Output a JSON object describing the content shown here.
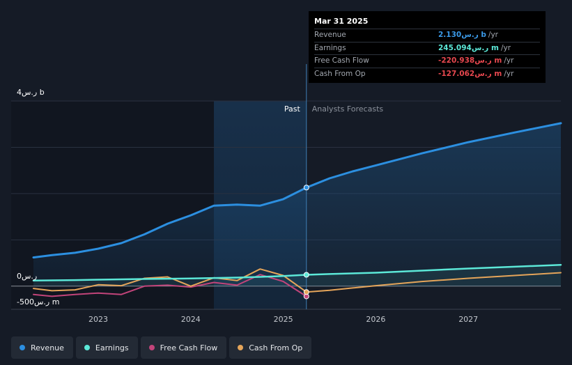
{
  "tooltip": {
    "date": "Mar 31 2025",
    "rows": [
      {
        "label": "Revenue",
        "value": "2.130ر.س b",
        "suffix": "/yr",
        "color": "#3b9ae8"
      },
      {
        "label": "Earnings",
        "value": "245.094ر.س m",
        "suffix": "/yr",
        "color": "#5ce8d8"
      },
      {
        "label": "Free Cash Flow",
        "value": "-220.938ر.س m",
        "suffix": "/yr",
        "color": "#e8484f"
      },
      {
        "label": "Cash From Op",
        "value": "-127.062ر.س m",
        "suffix": "/yr",
        "color": "#e8484f"
      }
    ]
  },
  "legend": [
    {
      "label": "Revenue",
      "color": "#2c8fe0"
    },
    {
      "label": "Earnings",
      "color": "#5ce8d8"
    },
    {
      "label": "Free Cash Flow",
      "color": "#c2447a"
    },
    {
      "label": "Cash From Op",
      "color": "#e5a55a"
    }
  ],
  "chart_data": {
    "type": "line",
    "ylim": [
      -500,
      4000
    ],
    "xlim": [
      2022.3,
      2028.0
    ],
    "y_tick_labels": [
      "4ر.س b",
      "0ر.س",
      "-500ر.س m"
    ],
    "x_tick_labels": [
      "2023",
      "2024",
      "2025",
      "2026",
      "2027"
    ],
    "x_ticks": [
      2023,
      2024,
      2025,
      2026,
      2027
    ],
    "past_label": "Past",
    "forecast_label": "Analysts Forecasts",
    "past_region_start": 2024.25,
    "divider_x": 2025.25,
    "series": [
      {
        "name": "Revenue",
        "color": "#2c8fe0",
        "x": [
          2022.3,
          2022.5,
          2022.75,
          2023.0,
          2023.25,
          2023.5,
          2023.75,
          2024.0,
          2024.25,
          2024.5,
          2024.75,
          2025.0,
          2025.25,
          2025.5,
          2025.75,
          2026.0,
          2026.5,
          2027.0,
          2027.5,
          2028.0
        ],
        "y": [
          620,
          670,
          720,
          810,
          930,
          1120,
          1350,
          1530,
          1740,
          1760,
          1740,
          1880,
          2130,
          2330,
          2480,
          2610,
          2870,
          3110,
          3320,
          3520
        ]
      },
      {
        "name": "Earnings",
        "color": "#5ce8d8",
        "x": [
          2022.3,
          2022.75,
          2023.0,
          2023.5,
          2024.0,
          2024.25,
          2024.5,
          2024.75,
          2025.0,
          2025.25,
          2025.5,
          2026.0,
          2026.5,
          2027.0,
          2027.5,
          2028.0
        ],
        "y": [
          120,
          130,
          140,
          155,
          165,
          175,
          185,
          200,
          220,
          245,
          262,
          290,
          335,
          380,
          420,
          460
        ]
      },
      {
        "name": "Free Cash Flow",
        "color": "#c2447a",
        "x": [
          2022.3,
          2022.5,
          2022.75,
          2023.0,
          2023.25,
          2023.5,
          2023.75,
          2024.0,
          2024.25,
          2024.5,
          2024.75,
          2025.0,
          2025.25
        ],
        "y": [
          -180,
          -220,
          -180,
          -150,
          -180,
          0,
          20,
          -20,
          80,
          20,
          250,
          100,
          -220.938
        ]
      },
      {
        "name": "Cash From Op",
        "color": "#e5a55a",
        "x": [
          2022.3,
          2022.5,
          2022.75,
          2023.0,
          2023.25,
          2023.5,
          2023.75,
          2024.0,
          2024.25,
          2024.5,
          2024.75,
          2025.0,
          2025.25,
          2025.5,
          2025.75,
          2026.0,
          2026.5,
          2027.0,
          2027.5,
          2028.0
        ],
        "y": [
          -50,
          -100,
          -80,
          30,
          10,
          170,
          200,
          0,
          180,
          120,
          370,
          230,
          -127.062,
          -90,
          -40,
          10,
          100,
          170,
          230,
          290
        ]
      }
    ]
  }
}
